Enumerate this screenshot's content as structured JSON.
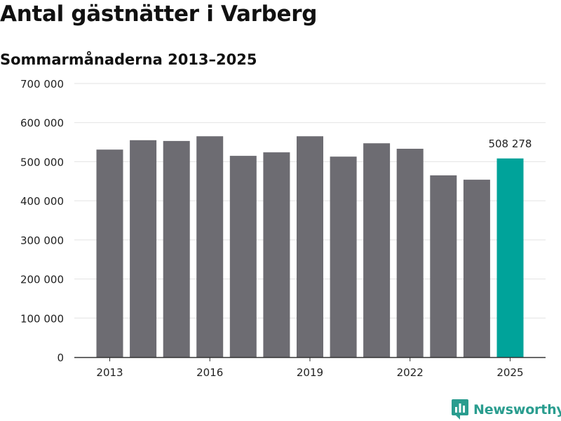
{
  "title": "Antal gästnätter i Varberg",
  "subtitle": "Sommarmånaderna 2013–2025",
  "brand": {
    "name": "Newsworthy",
    "color": "#2a9d8f"
  },
  "chart_data": {
    "type": "bar",
    "categories": [
      "2013",
      "2014",
      "2015",
      "2016",
      "2017",
      "2018",
      "2019",
      "2020",
      "2021",
      "2022",
      "2023",
      "2024",
      "2025"
    ],
    "values": [
      531000,
      555000,
      553000,
      565000,
      515000,
      524000,
      565000,
      513000,
      547000,
      533000,
      465000,
      454000,
      508278
    ],
    "x_tick_labels": [
      "2013",
      "2016",
      "2019",
      "2022",
      "2025"
    ],
    "y_ticks": [
      0,
      100000,
      200000,
      300000,
      400000,
      500000,
      600000,
      700000
    ],
    "y_tick_labels": [
      "0",
      "100 000",
      "200 000",
      "300 000",
      "400 000",
      "500 000",
      "600 000",
      "700 000"
    ],
    "ylim": [
      0,
      700000
    ],
    "highlight": {
      "category": "2025",
      "label": "508 278"
    },
    "colors": {
      "bar": "#6d6c72",
      "highlight": "#00a39a",
      "grid": "#e3e3e3",
      "axis": "#333333"
    },
    "grid": true,
    "legend": "none"
  }
}
